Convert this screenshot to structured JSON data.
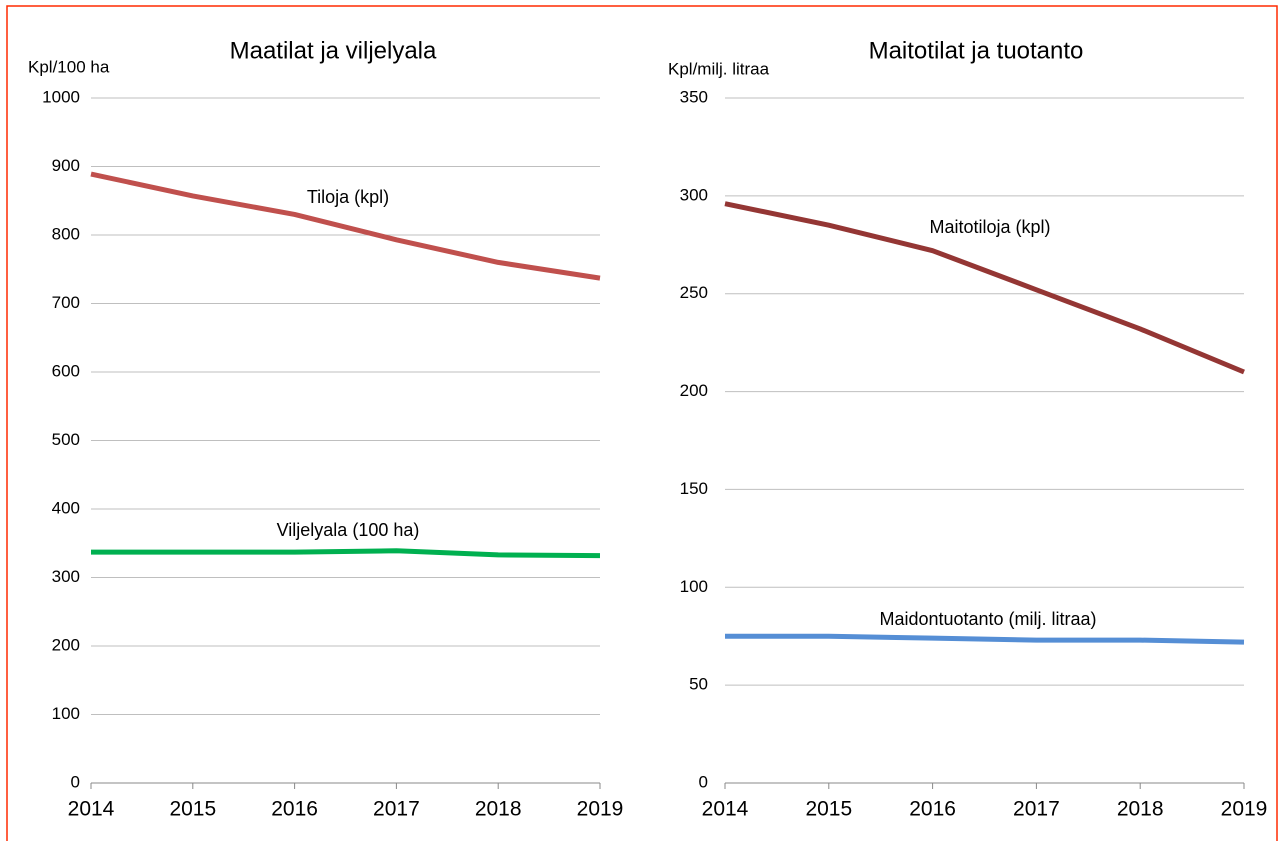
{
  "chart_data": [
    {
      "type": "line",
      "title": "Maatilat ja viljelyala",
      "y_label": "Kpl/100 ha",
      "x": [
        2014,
        2015,
        2016,
        2017,
        2018,
        2019
      ],
      "xlim": [
        2014,
        2019
      ],
      "xticks": [
        2014,
        2015,
        2016,
        2017,
        2018,
        2019
      ],
      "ylim": [
        0,
        1000
      ],
      "yticks": [
        0,
        100,
        200,
        300,
        400,
        500,
        600,
        700,
        800,
        900,
        1000
      ],
      "grid": true,
      "series": [
        {
          "name": "Tiloja (kpl)",
          "color": "#c0504d",
          "values": [
            889,
            857,
            830,
            793,
            760,
            737
          ]
        },
        {
          "name": "Viljelyala (100 ha)",
          "color": "#00b050",
          "values": [
            337,
            337,
            337,
            339,
            333,
            332
          ]
        }
      ]
    },
    {
      "type": "line",
      "title": "Maitotilat ja tuotanto",
      "y_label": "Kpl/milj. litraa",
      "x": [
        2014,
        2015,
        2016,
        2017,
        2018,
        2019
      ],
      "xlim": [
        2014,
        2019
      ],
      "xticks": [
        2014,
        2015,
        2016,
        2017,
        2018,
        2019
      ],
      "ylim": [
        0,
        350
      ],
      "yticks": [
        0,
        50,
        100,
        150,
        200,
        250,
        300,
        350
      ],
      "grid": true,
      "series": [
        {
          "name": "Maitotiloja (kpl)",
          "color": "#943634",
          "values": [
            296,
            285,
            272,
            252,
            232,
            210
          ]
        },
        {
          "name": "Maidontuotanto (milj. litraa)",
          "color": "#558ed5",
          "values": [
            75,
            75,
            74,
            73,
            73,
            72
          ]
        }
      ]
    }
  ]
}
